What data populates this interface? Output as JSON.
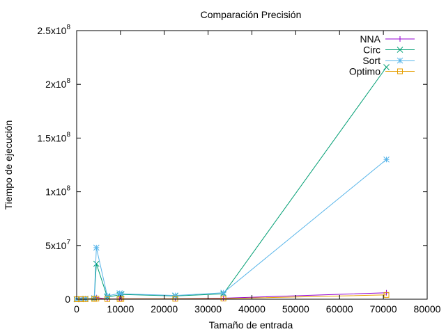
{
  "chart_data": {
    "type": "line",
    "title": "Comparación Precisión",
    "xlabel": "Tamaño de entrada",
    "ylabel": "Tiempo de ejecución",
    "xlim": [
      0,
      80000
    ],
    "ylim": [
      0,
      250000000
    ],
    "xticks": [
      {
        "value": 0,
        "label": "0"
      },
      {
        "value": 10000,
        "label": "10000"
      },
      {
        "value": 20000,
        "label": "20000"
      },
      {
        "value": 30000,
        "label": "30000"
      },
      {
        "value": 40000,
        "label": "40000"
      },
      {
        "value": 50000,
        "label": "50000"
      },
      {
        "value": 60000,
        "label": "60000"
      },
      {
        "value": 70000,
        "label": "70000"
      },
      {
        "value": 80000,
        "label": "80000"
      }
    ],
    "yticks": [
      {
        "value": 0,
        "mantissa": "0",
        "exponent": ""
      },
      {
        "value": 50000000,
        "mantissa": "5x10",
        "exponent": "7"
      },
      {
        "value": 100000000,
        "mantissa": "1x10",
        "exponent": "8"
      },
      {
        "value": 150000000,
        "mantissa": "1.5x10",
        "exponent": "8"
      },
      {
        "value": 200000000,
        "mantissa": "2x10",
        "exponent": "8"
      },
      {
        "value": 250000000,
        "mantissa": "2.5x10",
        "exponent": "8"
      }
    ],
    "grid": false,
    "legend_position": "top-right",
    "series": [
      {
        "name": "NNA",
        "color": "#9400d3",
        "marker": "plus",
        "points": [
          [
            0,
            0
          ],
          [
            1000,
            100000
          ],
          [
            2000,
            200000
          ],
          [
            4000,
            600000
          ],
          [
            4500,
            1500000
          ],
          [
            7000,
            300000
          ],
          [
            9800,
            400000
          ],
          [
            10200,
            500000
          ],
          [
            22500,
            500000
          ],
          [
            33500,
            1000000
          ],
          [
            70700,
            6000000
          ]
        ]
      },
      {
        "name": "Circ",
        "color": "#009e73",
        "marker": "cross",
        "points": [
          [
            0,
            0
          ],
          [
            1000,
            100000
          ],
          [
            2000,
            300000
          ],
          [
            4000,
            700000
          ],
          [
            4500,
            33000000
          ],
          [
            7000,
            2000000
          ],
          [
            9800,
            4000000
          ],
          [
            10200,
            4500000
          ],
          [
            22500,
            3000000
          ],
          [
            33500,
            5000000
          ],
          [
            70700,
            216000000
          ]
        ]
      },
      {
        "name": "Sort",
        "color": "#56b4e9",
        "marker": "star",
        "points": [
          [
            0,
            0
          ],
          [
            1000,
            100000
          ],
          [
            2000,
            500000
          ],
          [
            4000,
            1000000
          ],
          [
            4500,
            48000000
          ],
          [
            7000,
            3000000
          ],
          [
            9800,
            5500000
          ],
          [
            10200,
            5000000
          ],
          [
            22500,
            3500000
          ],
          [
            33500,
            6000000
          ],
          [
            70700,
            130000000
          ]
        ]
      },
      {
        "name": "Optimo",
        "color": "#e69f00",
        "marker": "square",
        "points": [
          [
            0,
            0
          ],
          [
            1000,
            50000
          ],
          [
            2000,
            100000
          ],
          [
            4000,
            300000
          ],
          [
            4500,
            500000
          ],
          [
            7000,
            200000
          ],
          [
            9800,
            200000
          ],
          [
            10200,
            300000
          ],
          [
            22500,
            400000
          ],
          [
            33500,
            600000
          ],
          [
            70700,
            4000000
          ]
        ]
      }
    ]
  }
}
